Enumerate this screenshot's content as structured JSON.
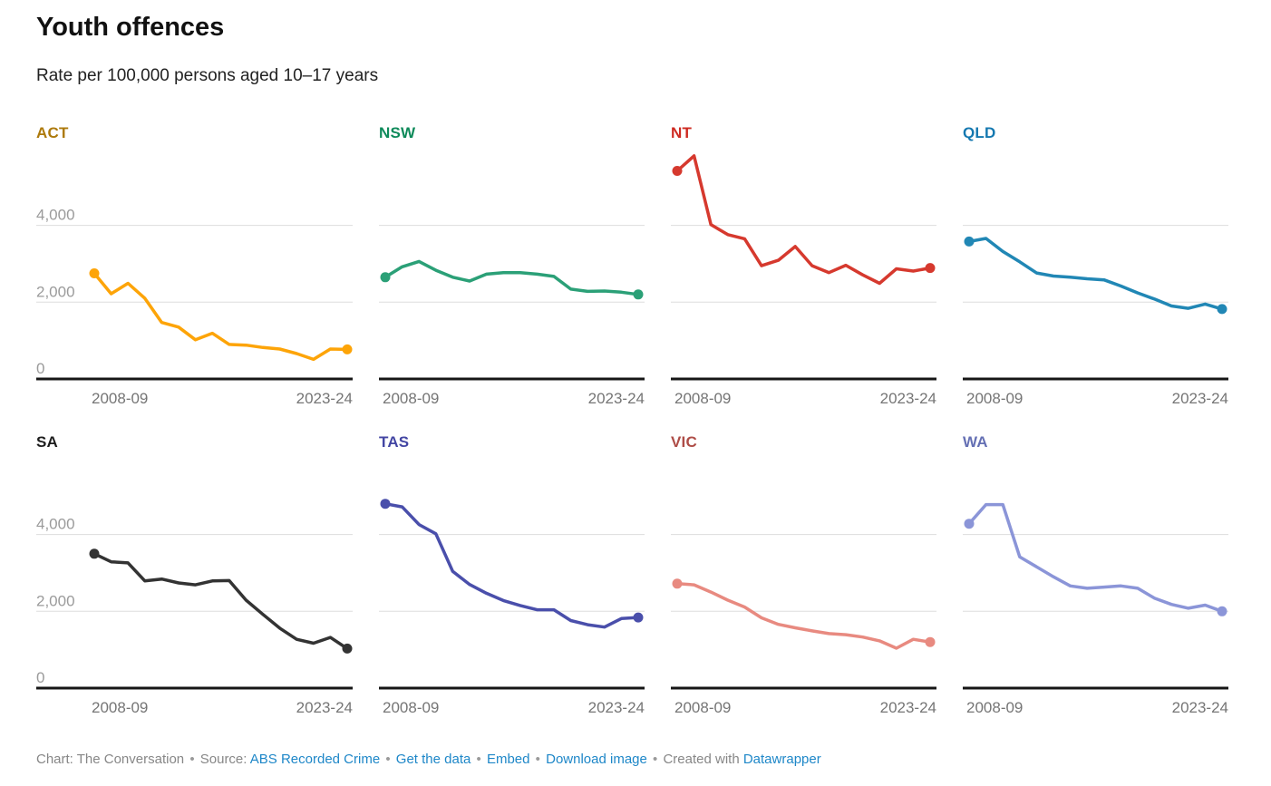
{
  "header": {
    "title": "Youth offences",
    "subtitle": "Rate per 100,000 persons aged 10–17 years"
  },
  "chart_data": {
    "type": "line",
    "layout": "small-multiples (2 rows × 4 columns)",
    "x": [
      "2008-09",
      "2009-10",
      "2010-11",
      "2011-12",
      "2012-13",
      "2013-14",
      "2014-15",
      "2015-16",
      "2016-17",
      "2017-18",
      "2018-19",
      "2019-20",
      "2020-21",
      "2021-22",
      "2022-23",
      "2023-24"
    ],
    "x_tick_labels": [
      "2008-09",
      "2023-24"
    ],
    "y_ticks": [
      {
        "value": 4000,
        "label": "4,000"
      },
      {
        "value": 2000,
        "label": "2,000"
      },
      {
        "value": 0,
        "label": "0"
      }
    ],
    "ylim": [
      0,
      6000
    ],
    "y_gridlines": [
      4000,
      2000
    ],
    "y_tick_labels_shown_on": "first column only",
    "grid": true,
    "legend": "none (colored panel headers)",
    "marker_style": "dots on first and last points",
    "series": [
      {
        "name": "ACT",
        "line_color": "#fda408",
        "label_color": "#ad7a0c",
        "values": [
          2750,
          2220,
          2490,
          2100,
          1470,
          1350,
          1020,
          1190,
          900,
          880,
          820,
          780,
          660,
          510,
          780,
          770
        ]
      },
      {
        "name": "NSW",
        "line_color": "#2ba077",
        "label_color": "#0e8a5a",
        "values": [
          2650,
          2920,
          3060,
          2830,
          2650,
          2550,
          2730,
          2770,
          2770,
          2730,
          2670,
          2340,
          2280,
          2290,
          2260,
          2200
        ]
      },
      {
        "name": "NT",
        "line_color": "#d6392e",
        "label_color": "#ce2a21",
        "values": [
          5420,
          5810,
          4020,
          3760,
          3650,
          2950,
          3090,
          3450,
          2950,
          2770,
          2960,
          2710,
          2490,
          2870,
          2810,
          2890
        ]
      },
      {
        "name": "QLD",
        "line_color": "#2187b5",
        "label_color": "#1478b0",
        "values": [
          3580,
          3660,
          3320,
          3050,
          2760,
          2680,
          2650,
          2610,
          2580,
          2420,
          2240,
          2080,
          1900,
          1840,
          1950,
          1820
        ]
      },
      {
        "name": "SA",
        "line_color": "#333333",
        "label_color": "#1d1d1d",
        "values": [
          3500,
          3290,
          3260,
          2790,
          2840,
          2740,
          2690,
          2790,
          2800,
          2290,
          1920,
          1560,
          1270,
          1170,
          1320,
          1030
        ]
      },
      {
        "name": "TAS",
        "line_color": "#4a4fab",
        "label_color": "#4346a3",
        "values": [
          4800,
          4720,
          4260,
          4020,
          3040,
          2700,
          2470,
          2280,
          2150,
          2040,
          2040,
          1760,
          1650,
          1590,
          1810,
          1840
        ]
      },
      {
        "name": "VIC",
        "line_color": "#e88a80",
        "label_color": "#ae4d47",
        "values": [
          2720,
          2690,
          2500,
          2290,
          2110,
          1830,
          1660,
          1570,
          1490,
          1420,
          1390,
          1330,
          1230,
          1040,
          1270,
          1200
        ]
      },
      {
        "name": "WA",
        "line_color": "#8b95d8",
        "label_color": "#6570b4",
        "values": [
          4280,
          4780,
          4780,
          3420,
          3160,
          2900,
          2660,
          2600,
          2630,
          2660,
          2600,
          2340,
          2180,
          2080,
          2160,
          2000
        ]
      }
    ]
  },
  "footer": {
    "chart_credit": "Chart: The Conversation",
    "separator": "•",
    "source_label": "Source:",
    "source_link": "ABS Recorded Crime",
    "get_data_link": "Get the data",
    "embed_link": "Embed",
    "download_link": "Download image",
    "created_label": "Created with",
    "brand_link": "Datawrapper",
    "link_color": "#1e87c8"
  }
}
